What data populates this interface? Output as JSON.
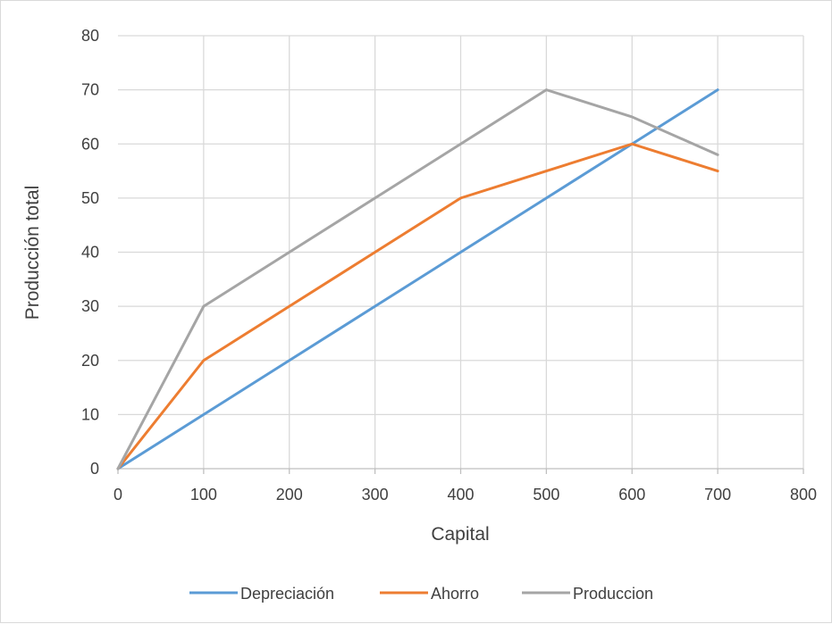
{
  "chart_data": {
    "type": "line",
    "title": "",
    "xlabel": "Capital",
    "ylabel": "Producción total",
    "xlim": [
      0,
      800
    ],
    "ylim": [
      0,
      80
    ],
    "xticks": [
      0,
      100,
      200,
      300,
      400,
      500,
      600,
      700,
      800
    ],
    "yticks": [
      0,
      10,
      20,
      30,
      40,
      50,
      60,
      70,
      80
    ],
    "grid": true,
    "legend_position": "bottom",
    "x": [
      0,
      100,
      200,
      300,
      400,
      500,
      600,
      700
    ],
    "series": [
      {
        "name": "Depreciación",
        "color": "#5b9bd5",
        "values": [
          0,
          10,
          20,
          30,
          40,
          50,
          60,
          70
        ]
      },
      {
        "name": "Ahorro",
        "color": "#ed7d31",
        "values": [
          0,
          20,
          30,
          40,
          50,
          55,
          60,
          55
        ]
      },
      {
        "name": "Produccion",
        "color": "#a5a5a5",
        "values": [
          0,
          30,
          40,
          50,
          60,
          70,
          65,
          58
        ]
      }
    ]
  }
}
